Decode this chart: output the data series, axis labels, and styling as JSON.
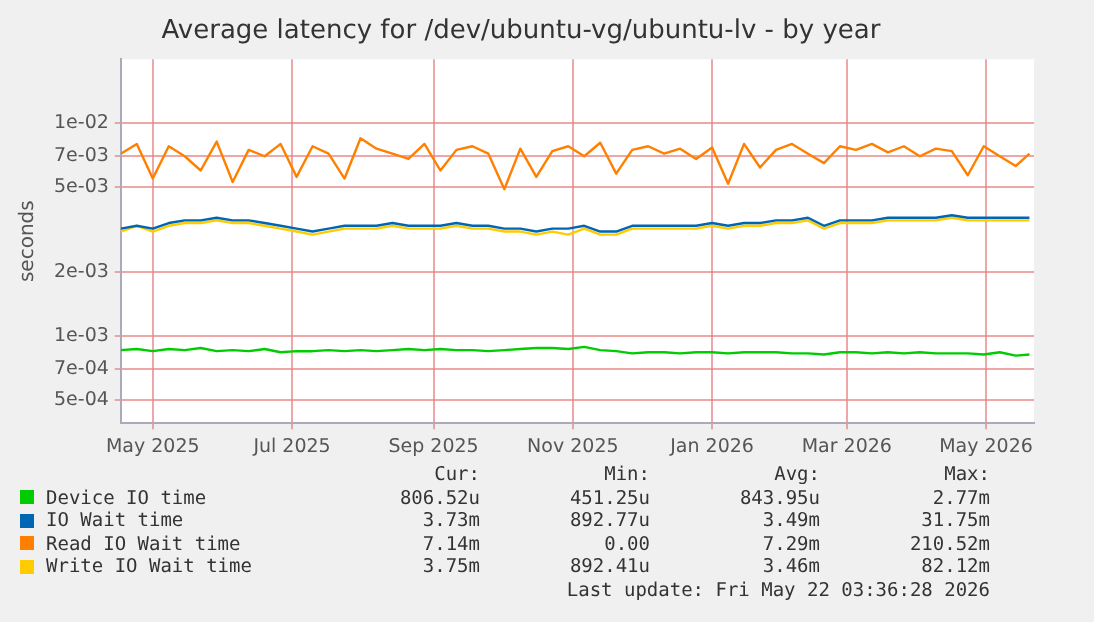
{
  "chart_data": {
    "type": "line",
    "title": "Average latency for /dev/ubuntu-vg/ubuntu-lv - by year",
    "ylabel": "seconds",
    "log": "y",
    "grid": true,
    "legend": "bottom",
    "marker": "none",
    "line_style": "solid",
    "xlim": [
      "2025-04-17",
      "2026-05-22"
    ],
    "xticks": [
      {
        "value": "2025-05",
        "label": "May 2025"
      },
      {
        "value": "2025-07",
        "label": "Jul 2025"
      },
      {
        "value": "2025-09",
        "label": "Sep 2025"
      },
      {
        "value": "2025-11",
        "label": "Nov 2025"
      },
      {
        "value": "2026-01",
        "label": "Jan 2026"
      },
      {
        "value": "2026-03",
        "label": "Mar 2026"
      },
      {
        "value": "2026-05",
        "label": "May 2026"
      }
    ],
    "ylim": [
      0.00039,
      0.02
    ],
    "yticks": [
      {
        "value": 0.0005,
        "label": "5e-04"
      },
      {
        "value": 0.0007,
        "label": "7e-04"
      },
      {
        "value": 0.001,
        "label": "1e-03"
      },
      {
        "value": 0.002,
        "label": "2e-03"
      },
      {
        "value": 0.005,
        "label": "5e-03"
      },
      {
        "value": 0.007,
        "label": "7e-03"
      },
      {
        "value": 0.01,
        "label": "1e-02"
      }
    ],
    "x": [
      "2025-04-17",
      "2025-04-24",
      "2025-05-01",
      "2025-05-08",
      "2025-05-15",
      "2025-05-22",
      "2025-05-29",
      "2025-06-05",
      "2025-06-12",
      "2025-06-19",
      "2025-06-26",
      "2025-07-03",
      "2025-07-10",
      "2025-07-17",
      "2025-07-24",
      "2025-07-31",
      "2025-08-07",
      "2025-08-14",
      "2025-08-21",
      "2025-08-28",
      "2025-09-04",
      "2025-09-11",
      "2025-09-18",
      "2025-09-25",
      "2025-10-02",
      "2025-10-09",
      "2025-10-16",
      "2025-10-23",
      "2025-10-30",
      "2025-11-06",
      "2025-11-13",
      "2025-11-20",
      "2025-11-27",
      "2025-12-04",
      "2025-12-11",
      "2025-12-18",
      "2025-12-25",
      "2026-01-01",
      "2026-01-08",
      "2026-01-15",
      "2026-01-22",
      "2026-01-29",
      "2026-02-05",
      "2026-02-12",
      "2026-02-19",
      "2026-02-26",
      "2026-03-05",
      "2026-03-12",
      "2026-03-19",
      "2026-03-26",
      "2026-04-02",
      "2026-04-09",
      "2026-04-16",
      "2026-04-23",
      "2026-04-30",
      "2026-05-07",
      "2026-05-14",
      "2026-05-20"
    ],
    "series": [
      {
        "name": "Device IO time",
        "color": "#00cc00",
        "values": [
          0.00086,
          0.00087,
          0.00085,
          0.00087,
          0.00086,
          0.00088,
          0.00085,
          0.00086,
          0.00085,
          0.00087,
          0.00084,
          0.00085,
          0.00085,
          0.00086,
          0.00085,
          0.00086,
          0.00085,
          0.00086,
          0.00087,
          0.00086,
          0.00087,
          0.00086,
          0.00086,
          0.00085,
          0.00086,
          0.00087,
          0.00088,
          0.00088,
          0.00087,
          0.00089,
          0.00086,
          0.00085,
          0.00083,
          0.00084,
          0.00084,
          0.00083,
          0.00084,
          0.00084,
          0.00083,
          0.00084,
          0.00084,
          0.00084,
          0.00083,
          0.00083,
          0.00082,
          0.00084,
          0.00084,
          0.00083,
          0.00084,
          0.00083,
          0.00084,
          0.00083,
          0.00083,
          0.00083,
          0.00082,
          0.00084,
          0.00081,
          0.00082
        ]
      },
      {
        "name": "IO Wait time",
        "color": "#0066b3",
        "values": [
          0.0032,
          0.0033,
          0.0032,
          0.0034,
          0.0035,
          0.0035,
          0.0036,
          0.0035,
          0.0035,
          0.0034,
          0.0033,
          0.0032,
          0.0031,
          0.0032,
          0.0033,
          0.0033,
          0.0033,
          0.0034,
          0.0033,
          0.0033,
          0.0033,
          0.0034,
          0.0033,
          0.0033,
          0.0032,
          0.0032,
          0.0031,
          0.0032,
          0.0032,
          0.0033,
          0.0031,
          0.0031,
          0.0033,
          0.0033,
          0.0033,
          0.0033,
          0.0033,
          0.0034,
          0.0033,
          0.0034,
          0.0034,
          0.0035,
          0.0035,
          0.0036,
          0.0033,
          0.0035,
          0.0035,
          0.0035,
          0.0036,
          0.0036,
          0.0036,
          0.0036,
          0.0037,
          0.0036,
          0.0036,
          0.0036,
          0.0036,
          0.0036
        ]
      },
      {
        "name": "Read IO Wait time",
        "color": "#ff8000",
        "values": [
          0.0072,
          0.008,
          0.0055,
          0.0078,
          0.007,
          0.006,
          0.0082,
          0.0053,
          0.0075,
          0.007,
          0.008,
          0.0056,
          0.0078,
          0.0072,
          0.0055,
          0.0085,
          0.0076,
          0.0072,
          0.0068,
          0.008,
          0.006,
          0.0075,
          0.0078,
          0.0072,
          0.0049,
          0.0076,
          0.0056,
          0.0074,
          0.0078,
          0.007,
          0.0081,
          0.0058,
          0.0075,
          0.0078,
          0.0072,
          0.0076,
          0.0068,
          0.0077,
          0.0052,
          0.008,
          0.0062,
          0.0075,
          0.008,
          0.0072,
          0.0065,
          0.0078,
          0.0075,
          0.008,
          0.0073,
          0.0078,
          0.007,
          0.0076,
          0.0074,
          0.0057,
          0.0078,
          0.007,
          0.0063,
          0.0072
        ]
      },
      {
        "name": "Write IO Wait time",
        "color": "#ffcc00",
        "values": [
          0.0031,
          0.0033,
          0.0031,
          0.0033,
          0.0034,
          0.0034,
          0.0035,
          0.0034,
          0.0034,
          0.0033,
          0.0032,
          0.0031,
          0.003,
          0.0031,
          0.0032,
          0.0032,
          0.0032,
          0.0033,
          0.0032,
          0.0032,
          0.0032,
          0.0033,
          0.0032,
          0.0032,
          0.0031,
          0.0031,
          0.003,
          0.0031,
          0.003,
          0.0032,
          0.003,
          0.003,
          0.0032,
          0.0032,
          0.0032,
          0.0032,
          0.0032,
          0.0033,
          0.0032,
          0.0033,
          0.0033,
          0.0034,
          0.0034,
          0.0035,
          0.0032,
          0.0034,
          0.0034,
          0.0034,
          0.0035,
          0.0035,
          0.0035,
          0.0035,
          0.0036,
          0.0035,
          0.0035,
          0.0035,
          0.0035,
          0.0035
        ]
      }
    ],
    "annotations": [
      "Cur:",
      "Min:",
      "Avg:",
      "Max:",
      "806.52u",
      "451.25u",
      "843.95u",
      "2.77m",
      "3.73m",
      "892.77u",
      "3.49m",
      "31.75m",
      "7.14m",
      "0.00",
      "7.29m",
      "210.52m",
      "3.75m",
      "892.41u",
      "3.46m",
      "82.12m",
      "Last update: Fri May 22 03:36:28 2026"
    ]
  }
}
